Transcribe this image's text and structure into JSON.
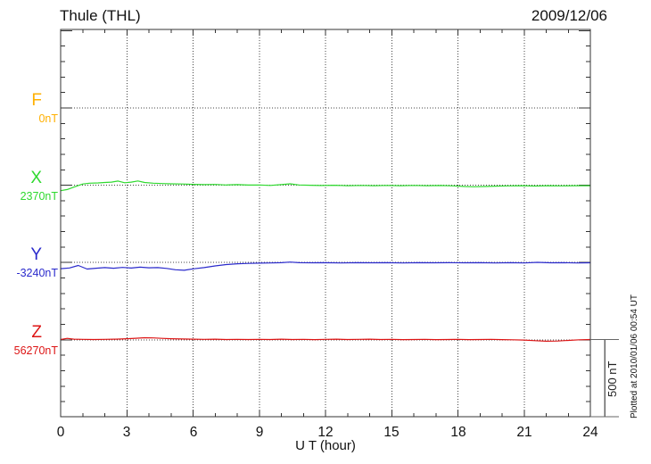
{
  "header": {
    "title": "Thule (THL)",
    "date": "2009/12/06"
  },
  "axis": {
    "xlabel": "U T (hour)"
  },
  "annotations": {
    "plotted_at": "Plotted at 2010/01/06 00:54 UT",
    "scale_bar_label": "500 nT"
  },
  "chart_data": {
    "type": "line",
    "title": "Thule (THL)",
    "date": "2009/12/06",
    "xlabel": "U T (hour)",
    "x_range_hours": [
      0,
      24
    ],
    "x_ticks": [
      0,
      3,
      6,
      9,
      12,
      15,
      18,
      21,
      24
    ],
    "x_minor_tick_hours": 1,
    "y_minor_tick_nT": 100,
    "series_offset_nT": 500,
    "grid": true,
    "scale_bar": {
      "label": "500 nT",
      "nT": 500
    },
    "plotted_at": "Plotted at 2010/01/06 00:54 UT",
    "series": [
      {
        "name": "F",
        "baseline_label": "0nT",
        "baseline_nT": 0,
        "color": "#FFB000",
        "points_hour_devnT": []
      },
      {
        "name": "X",
        "baseline_label": "2370nT",
        "baseline_nT": 2370,
        "color": "#2FD92F",
        "points_hour_devnT": [
          [
            0,
            -35
          ],
          [
            0.3,
            -28
          ],
          [
            0.6,
            -12
          ],
          [
            1,
            8
          ],
          [
            1.3,
            13
          ],
          [
            1.7,
            15
          ],
          [
            2,
            18
          ],
          [
            2.3,
            20
          ],
          [
            2.6,
            27
          ],
          [
            2.9,
            16
          ],
          [
            3.2,
            20
          ],
          [
            3.5,
            28
          ],
          [
            3.8,
            18
          ],
          [
            4.2,
            13
          ],
          [
            4.6,
            11
          ],
          [
            5,
            9
          ],
          [
            5.5,
            8
          ],
          [
            6,
            6
          ],
          [
            6.5,
            4
          ],
          [
            7,
            5
          ],
          [
            7.5,
            2
          ],
          [
            8,
            4
          ],
          [
            8.5,
            1
          ],
          [
            9,
            2
          ],
          [
            9.5,
            -1
          ],
          [
            10,
            4
          ],
          [
            10.4,
            9
          ],
          [
            10.8,
            2
          ],
          [
            11.3,
            0
          ],
          [
            11.8,
            -2
          ],
          [
            12.4,
            0
          ],
          [
            13,
            -3
          ],
          [
            13.6,
            -1
          ],
          [
            14.2,
            -3
          ],
          [
            14.8,
            -1
          ],
          [
            15.4,
            -3
          ],
          [
            16,
            -1
          ],
          [
            16.6,
            -3
          ],
          [
            17.2,
            -2
          ],
          [
            17.8,
            -4
          ],
          [
            18.3,
            -8
          ],
          [
            18.7,
            -10
          ],
          [
            19.2,
            -8
          ],
          [
            19.7,
            -6
          ],
          [
            20.3,
            -4
          ],
          [
            20.9,
            -3
          ],
          [
            21.5,
            -5
          ],
          [
            22.1,
            -3
          ],
          [
            22.7,
            -4
          ],
          [
            23.3,
            -3
          ],
          [
            24,
            -3
          ]
        ]
      },
      {
        "name": "Y",
        "baseline_label": "-3240nT",
        "baseline_nT": -3240,
        "color": "#2A2ACC",
        "points_hour_devnT": [
          [
            0,
            -40
          ],
          [
            0.4,
            -35
          ],
          [
            0.8,
            -19
          ],
          [
            1.2,
            -42
          ],
          [
            1.6,
            -37
          ],
          [
            2,
            -33
          ],
          [
            2.4,
            -37
          ],
          [
            2.8,
            -32
          ],
          [
            3.2,
            -36
          ],
          [
            3.6,
            -30
          ],
          [
            4,
            -34
          ],
          [
            4.4,
            -33
          ],
          [
            4.8,
            -38
          ],
          [
            5.2,
            -47
          ],
          [
            5.6,
            -50
          ],
          [
            6,
            -41
          ],
          [
            6.5,
            -33
          ],
          [
            7,
            -22
          ],
          [
            7.5,
            -13
          ],
          [
            8,
            -8
          ],
          [
            8.5,
            -6
          ],
          [
            9,
            -4
          ],
          [
            9.5,
            -3
          ],
          [
            10,
            -1
          ],
          [
            10.4,
            3
          ],
          [
            10.8,
            -1
          ],
          [
            11.4,
            -2
          ],
          [
            12,
            -1
          ],
          [
            12.7,
            -3
          ],
          [
            13.4,
            -1
          ],
          [
            14.1,
            -2
          ],
          [
            14.8,
            -1
          ],
          [
            15.5,
            -3
          ],
          [
            16.2,
            -1
          ],
          [
            16.9,
            -2
          ],
          [
            17.6,
            -1
          ],
          [
            18.3,
            -2
          ],
          [
            19,
            -1
          ],
          [
            19.7,
            -3
          ],
          [
            20.4,
            -1
          ],
          [
            21,
            -3
          ],
          [
            21.6,
            1
          ],
          [
            22.2,
            -2
          ],
          [
            22.8,
            -1
          ],
          [
            23.4,
            -3
          ],
          [
            24,
            -2
          ]
        ]
      },
      {
        "name": "Z",
        "baseline_label": "56270nT",
        "baseline_nT": 56270,
        "color": "#DD1515",
        "points_hour_devnT": [
          [
            0,
            2
          ],
          [
            0.3,
            9
          ],
          [
            0.6,
            4
          ],
          [
            1,
            3
          ],
          [
            1.5,
            2
          ],
          [
            2,
            3
          ],
          [
            2.5,
            4
          ],
          [
            3,
            7
          ],
          [
            3.4,
            10
          ],
          [
            3.8,
            13
          ],
          [
            4.2,
            12
          ],
          [
            4.6,
            9
          ],
          [
            5,
            7
          ],
          [
            5.5,
            5
          ],
          [
            6,
            4
          ],
          [
            6.5,
            3
          ],
          [
            7,
            4
          ],
          [
            7.5,
            2
          ],
          [
            8,
            3
          ],
          [
            8.5,
            2
          ],
          [
            9,
            3
          ],
          [
            9.5,
            2
          ],
          [
            10,
            4
          ],
          [
            10.5,
            2
          ],
          [
            11,
            3
          ],
          [
            11.5,
            1
          ],
          [
            12,
            3
          ],
          [
            12.5,
            4
          ],
          [
            13,
            2
          ],
          [
            13.5,
            3
          ],
          [
            14,
            4
          ],
          [
            14.5,
            2
          ],
          [
            15,
            3
          ],
          [
            15.5,
            1
          ],
          [
            16,
            2
          ],
          [
            16.5,
            3
          ],
          [
            17,
            1
          ],
          [
            17.5,
            2
          ],
          [
            18,
            3
          ],
          [
            18.5,
            1
          ],
          [
            19,
            2
          ],
          [
            19.5,
            3
          ],
          [
            20,
            1
          ],
          [
            20.5,
            0
          ],
          [
            21,
            -2
          ],
          [
            21.5,
            -6
          ],
          [
            22,
            -9
          ],
          [
            22.5,
            -8
          ],
          [
            23,
            -4
          ],
          [
            23.5,
            0
          ],
          [
            24,
            2
          ]
        ]
      }
    ]
  }
}
